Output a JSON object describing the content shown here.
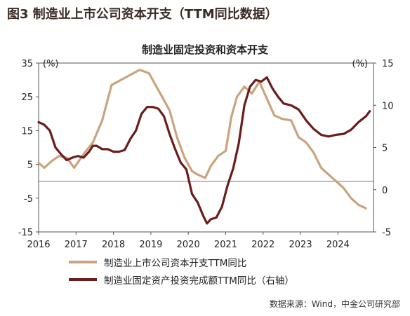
{
  "figure": {
    "title": "图3  制造业上市公司资本开支（TTM同比数据）",
    "source": "数据来源：Wind，中金公司研究部"
  },
  "chart_data": {
    "type": "line",
    "title": "制造业固定投资和资本开支",
    "left_axis": {
      "unit": "(%)",
      "ylim": [
        -15,
        35
      ],
      "ticks": [
        "35",
        "25",
        "15",
        "5",
        "-5",
        "-15"
      ]
    },
    "right_axis": {
      "unit": "(%)",
      "ylim": [
        -5,
        15
      ],
      "ticks": [
        "15",
        "10",
        "5",
        "0",
        "-5"
      ]
    },
    "x_ticks": [
      "2016",
      "2017",
      "2018",
      "2019",
      "2020",
      "2021",
      "2022",
      "2023",
      "2024"
    ],
    "series": [
      {
        "name": "制造业上市公司资本开支TTM同比",
        "axis": "left",
        "color": "#c9a47e",
        "x": [
          2016.0,
          2016.15,
          2016.35,
          2016.55,
          2016.75,
          2016.95,
          2017.2,
          2017.45,
          2017.7,
          2017.95,
          2018.2,
          2018.45,
          2018.7,
          2018.95,
          2019.1,
          2019.3,
          2019.5,
          2019.7,
          2019.9,
          2020.1,
          2020.25,
          2020.45,
          2020.6,
          2020.8,
          2021.0,
          2021.15,
          2021.3,
          2021.5,
          2021.7,
          2021.9,
          2022.1,
          2022.3,
          2022.5,
          2022.75,
          2022.95,
          2023.15,
          2023.35,
          2023.55,
          2023.75,
          2023.95,
          2024.15,
          2024.35,
          2024.55,
          2024.75
        ],
        "values": [
          5.5,
          4.0,
          6.0,
          7.5,
          7.0,
          4.0,
          8.0,
          11.5,
          18.0,
          28.5,
          30.0,
          31.5,
          33.0,
          32.0,
          29.0,
          25.0,
          21.0,
          13.0,
          7.0,
          3.0,
          2.0,
          1.0,
          4.5,
          7.5,
          9.0,
          19.0,
          25.0,
          28.0,
          26.0,
          29.5,
          24.5,
          19.5,
          18.5,
          18.0,
          13.0,
          11.5,
          8.5,
          4.0,
          2.0,
          0.0,
          -2.0,
          -5.0,
          -7.0,
          -8.0
        ]
      },
      {
        "name": "制造业固定资产投资完成额TTM同比（右轴）",
        "axis": "right",
        "color": "#6b1c1c",
        "x": [
          2016.0,
          2016.15,
          2016.3,
          2016.45,
          2016.6,
          2016.75,
          2016.9,
          2017.05,
          2017.2,
          2017.35,
          2017.45,
          2017.55,
          2017.7,
          2017.85,
          2018.0,
          2018.15,
          2018.3,
          2018.45,
          2018.6,
          2018.75,
          2018.9,
          2019.05,
          2019.2,
          2019.35,
          2019.5,
          2019.65,
          2019.8,
          2019.95,
          2020.1,
          2020.25,
          2020.4,
          2020.5,
          2020.6,
          2020.75,
          2020.9,
          2021.05,
          2021.2,
          2021.35,
          2021.5,
          2021.65,
          2021.8,
          2021.95,
          2022.1,
          2022.25,
          2022.4,
          2022.55,
          2022.75,
          2022.95,
          2023.15,
          2023.35,
          2023.55,
          2023.75,
          2023.95,
          2024.15,
          2024.35,
          2024.55,
          2024.75,
          2024.85
        ],
        "values": [
          8.0,
          7.7,
          7.0,
          5.0,
          4.2,
          3.5,
          3.8,
          4.0,
          3.8,
          4.5,
          5.2,
          5.2,
          4.8,
          4.8,
          4.5,
          4.5,
          4.7,
          6.0,
          7.0,
          9.0,
          9.8,
          9.8,
          9.6,
          8.7,
          6.6,
          4.8,
          3.2,
          2.4,
          -0.5,
          -1.5,
          -3.1,
          -4.0,
          -3.5,
          -3.3,
          -2.0,
          0.5,
          2.5,
          5.5,
          10.0,
          12.2,
          13.0,
          12.8,
          13.3,
          12.0,
          11.0,
          10.2,
          10.0,
          9.5,
          8.2,
          7.2,
          6.5,
          6.3,
          6.5,
          6.6,
          7.1,
          8.0,
          8.7,
          9.3
        ]
      }
    ],
    "legend_position": "bottom"
  }
}
